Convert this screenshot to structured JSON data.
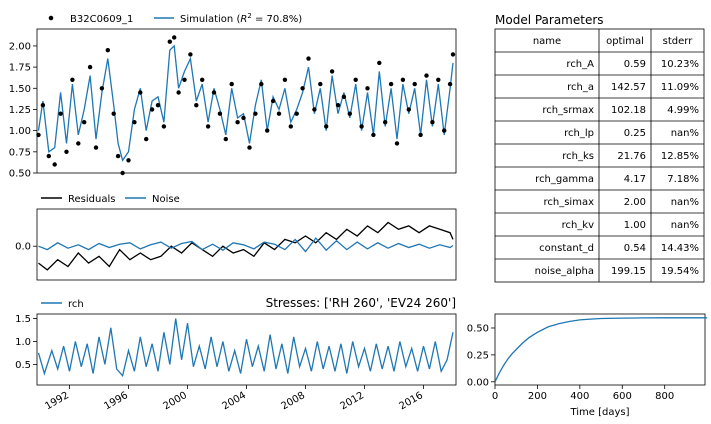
{
  "chart_data": [
    {
      "type": "scatter",
      "subplot": "observations-vs-simulation",
      "series": [
        {
          "name": "B32C0609_1",
          "kind": "points",
          "color": "#000000",
          "x": [
            1989.9,
            1990.2,
            1990.6,
            1991.0,
            1991.4,
            1991.8,
            1992.2,
            1992.6,
            1993.0,
            1993.4,
            1993.8,
            1994.2,
            1994.6,
            1995.0,
            1995.3,
            1995.6,
            1996.0,
            1996.4,
            1996.8,
            1997.2,
            1997.6,
            1998.0,
            1998.4,
            1998.8,
            1999.1,
            1999.4,
            1999.8,
            2000.2,
            2000.6,
            2001.0,
            2001.4,
            2001.8,
            2002.2,
            2002.6,
            2003.0,
            2003.4,
            2003.8,
            2004.2,
            2004.6,
            2005.0,
            2005.4,
            2005.8,
            2006.2,
            2006.6,
            2007.0,
            2007.4,
            2007.8,
            2008.2,
            2008.6,
            2009.0,
            2009.4,
            2009.8,
            2010.2,
            2010.6,
            2011.0,
            2011.4,
            2011.8,
            2012.2,
            2012.6,
            2013.0,
            2013.4,
            2013.8,
            2014.2,
            2014.6,
            2015.0,
            2015.4,
            2015.8,
            2016.2,
            2016.6,
            2017.0,
            2017.4,
            2017.8,
            2018.0
          ],
          "y": [
            0.95,
            1.3,
            0.7,
            0.6,
            1.2,
            0.75,
            1.6,
            0.85,
            1.1,
            1.75,
            0.8,
            1.5,
            1.95,
            1.2,
            0.7,
            0.5,
            0.65,
            1.1,
            1.45,
            0.9,
            1.25,
            1.3,
            1.05,
            2.05,
            2.1,
            1.45,
            1.6,
            1.9,
            1.3,
            1.6,
            1.05,
            1.45,
            1.2,
            0.9,
            1.55,
            1.1,
            1.15,
            0.8,
            1.2,
            1.55,
            1.0,
            1.35,
            1.2,
            1.6,
            1.05,
            1.2,
            1.5,
            1.85,
            1.25,
            1.55,
            1.05,
            1.7,
            1.3,
            1.4,
            1.2,
            1.6,
            1.05,
            1.5,
            0.95,
            1.8,
            1.1,
            1.55,
            0.85,
            1.6,
            1.25,
            1.55,
            0.95,
            1.65,
            1.1,
            1.6,
            1.0,
            1.55,
            1.9
          ]
        },
        {
          "name": "Simulation ($R^2$ = 70.8%)",
          "kind": "line",
          "color": "#1f77b4",
          "x": [
            1989.9,
            1990.2,
            1990.6,
            1991.0,
            1991.4,
            1991.8,
            1992.2,
            1992.6,
            1993.0,
            1993.4,
            1993.8,
            1994.2,
            1994.6,
            1995.0,
            1995.3,
            1995.6,
            1996.0,
            1996.4,
            1996.8,
            1997.2,
            1997.6,
            1998.0,
            1998.4,
            1998.8,
            1999.1,
            1999.4,
            1999.8,
            2000.2,
            2000.6,
            2001.0,
            2001.4,
            2001.8,
            2002.2,
            2002.6,
            2003.0,
            2003.4,
            2003.8,
            2004.2,
            2004.6,
            2005.0,
            2005.4,
            2005.8,
            2006.2,
            2006.6,
            2007.0,
            2007.4,
            2007.8,
            2008.2,
            2008.6,
            2009.0,
            2009.4,
            2009.8,
            2010.2,
            2010.6,
            2011.0,
            2011.4,
            2011.8,
            2012.2,
            2012.6,
            2013.0,
            2013.4,
            2013.8,
            2014.2,
            2014.6,
            2015.0,
            2015.4,
            2015.8,
            2016.2,
            2016.6,
            2017.0,
            2017.4,
            2017.8,
            2018.0
          ],
          "y": [
            1.0,
            1.35,
            0.75,
            0.8,
            1.45,
            0.85,
            1.55,
            0.95,
            1.25,
            1.65,
            0.9,
            1.45,
            1.85,
            1.3,
            0.85,
            0.65,
            0.75,
            1.25,
            1.5,
            1.0,
            1.35,
            1.4,
            1.1,
            1.95,
            2.0,
            1.5,
            1.7,
            1.85,
            1.35,
            1.55,
            1.1,
            1.5,
            1.25,
            0.95,
            1.5,
            1.15,
            1.2,
            0.85,
            1.3,
            1.6,
            1.0,
            1.4,
            1.25,
            1.5,
            1.1,
            1.25,
            1.45,
            1.75,
            1.2,
            1.5,
            1.0,
            1.65,
            1.2,
            1.45,
            1.15,
            1.55,
            1.0,
            1.45,
            0.95,
            1.7,
            1.05,
            1.5,
            0.9,
            1.55,
            1.2,
            1.5,
            0.95,
            1.6,
            1.05,
            1.55,
            0.95,
            1.5,
            1.8
          ]
        }
      ],
      "ylim": [
        0.5,
        2.2
      ],
      "yticks": [
        "0.50",
        "0.75",
        "1.00",
        "1.25",
        "1.50",
        "1.75",
        "2.00"
      ],
      "xlim": [
        1989.8,
        2018.2
      ]
    },
    {
      "type": "line",
      "subplot": "residuals-noise",
      "series": [
        {
          "name": "Residuals",
          "color": "#000000",
          "x": [
            1989.9,
            1990.5,
            1991.2,
            1991.9,
            1992.6,
            1993.3,
            1994.0,
            1994.7,
            1995.4,
            1996.1,
            1996.8,
            1997.5,
            1998.2,
            1998.9,
            1999.6,
            2000.3,
            2001.0,
            2001.7,
            2002.4,
            2003.1,
            2003.8,
            2004.5,
            2005.2,
            2005.9,
            2006.6,
            2007.3,
            2008.0,
            2008.7,
            2009.4,
            2010.1,
            2010.8,
            2011.5,
            2012.2,
            2012.9,
            2013.6,
            2014.3,
            2015.0,
            2015.7,
            2016.4,
            2017.1,
            2017.8,
            2018.0
          ],
          "y": [
            -0.25,
            -0.35,
            -0.2,
            -0.3,
            -0.1,
            -0.25,
            -0.15,
            -0.3,
            -0.05,
            -0.2,
            -0.1,
            -0.2,
            -0.15,
            0.0,
            -0.1,
            0.05,
            -0.05,
            -0.15,
            0.0,
            -0.1,
            -0.05,
            -0.15,
            0.05,
            -0.05,
            0.1,
            0.05,
            0.15,
            0.05,
            0.2,
            0.1,
            0.25,
            0.15,
            0.3,
            0.2,
            0.35,
            0.25,
            0.3,
            0.2,
            0.3,
            0.25,
            0.2,
            0.1
          ]
        },
        {
          "name": "Noise",
          "color": "#1f77b4",
          "x": [
            1989.9,
            1990.5,
            1991.2,
            1991.9,
            1992.6,
            1993.3,
            1994.0,
            1994.7,
            1995.4,
            1996.1,
            1996.8,
            1997.5,
            1998.2,
            1998.9,
            1999.6,
            2000.3,
            2001.0,
            2001.7,
            2002.4,
            2003.1,
            2003.8,
            2004.5,
            2005.2,
            2005.9,
            2006.6,
            2007.3,
            2008.0,
            2008.7,
            2009.4,
            2010.1,
            2010.8,
            2011.5,
            2012.2,
            2012.9,
            2013.6,
            2014.3,
            2015.0,
            2015.7,
            2016.4,
            2017.1,
            2017.8,
            2018.0
          ],
          "y": [
            0.0,
            -0.05,
            0.05,
            -0.03,
            0.02,
            -0.05,
            0.04,
            -0.02,
            0.03,
            0.05,
            -0.04,
            0.02,
            0.06,
            -0.03,
            0.04,
            0.07,
            -0.05,
            0.03,
            -0.06,
            0.05,
            0.02,
            -0.04,
            0.06,
            0.03,
            -0.05,
            0.1,
            -0.08,
            0.12,
            -0.06,
            0.08,
            -0.05,
            0.06,
            -0.04,
            0.05,
            -0.03,
            0.04,
            -0.02,
            0.03,
            -0.03,
            0.02,
            -0.02,
            0.01
          ]
        }
      ],
      "yticks": [
        "0.0"
      ],
      "ylim": [
        -0.5,
        0.55
      ],
      "xlim": [
        1989.8,
        2018.2
      ]
    },
    {
      "type": "line",
      "subplot": "stress-rch",
      "title": "Stresses: ['RH 260', 'EV24 260']",
      "series": [
        {
          "name": "rch",
          "color": "#1f77b4",
          "x": [
            1989.9,
            1990.3,
            1990.8,
            1991.2,
            1991.6,
            1992.0,
            1992.4,
            1992.8,
            1993.2,
            1993.6,
            1994.0,
            1994.4,
            1994.8,
            1995.2,
            1995.6,
            1996.0,
            1996.4,
            1996.8,
            1997.2,
            1997.6,
            1998.0,
            1998.4,
            1998.8,
            1999.2,
            1999.6,
            2000.0,
            2000.4,
            2000.8,
            2001.2,
            2001.6,
            2002.0,
            2002.4,
            2002.8,
            2003.2,
            2003.6,
            2004.0,
            2004.4,
            2004.8,
            2005.2,
            2005.6,
            2006.0,
            2006.4,
            2006.8,
            2007.2,
            2007.6,
            2008.0,
            2008.4,
            2008.8,
            2009.2,
            2009.6,
            2010.0,
            2010.4,
            2010.8,
            2011.2,
            2011.6,
            2012.0,
            2012.4,
            2012.8,
            2013.2,
            2013.6,
            2014.0,
            2014.4,
            2014.8,
            2015.2,
            2015.6,
            2016.0,
            2016.4,
            2016.8,
            2017.2,
            2017.6,
            2018.0
          ],
          "y": [
            0.75,
            0.3,
            0.8,
            0.4,
            0.9,
            0.35,
            1.0,
            0.45,
            0.95,
            0.3,
            1.1,
            0.5,
            1.3,
            0.4,
            0.25,
            0.8,
            0.35,
            1.1,
            0.45,
            0.95,
            0.35,
            1.2,
            0.5,
            1.5,
            0.6,
            1.4,
            0.45,
            0.9,
            0.4,
            1.1,
            0.45,
            1.0,
            0.35,
            0.8,
            0.3,
            1.05,
            0.45,
            0.9,
            0.35,
            1.15,
            0.4,
            0.95,
            0.3,
            1.1,
            0.45,
            0.85,
            0.35,
            1.0,
            0.4,
            0.9,
            0.35,
            0.95,
            0.3,
            1.0,
            0.45,
            0.85,
            0.35,
            0.95,
            0.4,
            0.9,
            0.35,
            1.0,
            0.45,
            0.85,
            0.35,
            0.9,
            0.4,
            1.0,
            0.35,
            0.6,
            1.2
          ]
        }
      ],
      "yticks": [
        "0.5",
        "1.0",
        "1.5"
      ],
      "ylim": [
        0.05,
        1.6
      ],
      "xlim": [
        1989.8,
        2018.2
      ],
      "xticks": [
        "1992",
        "1996",
        "2000",
        "2004",
        "2008",
        "2012",
        "2016"
      ],
      "xtick_values": [
        1992,
        1996,
        2000,
        2004,
        2008,
        2012,
        2016
      ]
    },
    {
      "type": "line",
      "subplot": "step-response",
      "xlabel": "Time [days]",
      "series": [
        {
          "color": "#1f77b4",
          "x": [
            0,
            20,
            40,
            60,
            80,
            100,
            130,
            160,
            200,
            250,
            300,
            350,
            400,
            450,
            500,
            600,
            700,
            800,
            900,
            1000
          ],
          "y": [
            0.0,
            0.08,
            0.15,
            0.21,
            0.26,
            0.3,
            0.36,
            0.41,
            0.46,
            0.51,
            0.54,
            0.56,
            0.575,
            0.583,
            0.588,
            0.592,
            0.594,
            0.595,
            0.595,
            0.595
          ]
        }
      ],
      "xlim": [
        0,
        990
      ],
      "ylim": [
        -0.03,
        0.63
      ],
      "xticks": [
        "0",
        "200",
        "400",
        "600",
        "800"
      ],
      "xtick_values": [
        0,
        200,
        400,
        600,
        800
      ],
      "yticks": [
        "0.00",
        "0.25",
        "0.50"
      ],
      "ytick_values": [
        0.0,
        0.25,
        0.5
      ]
    },
    {
      "type": "table",
      "title": "Model Parameters",
      "columns": [
        "name",
        "optimal",
        "stderr"
      ],
      "rows": [
        [
          "rch_A",
          "0.59",
          "10.23%"
        ],
        [
          "rch_a",
          "142.57",
          "11.09%"
        ],
        [
          "rch_srmax",
          "102.18",
          "4.99%"
        ],
        [
          "rch_lp",
          "0.25",
          "nan%"
        ],
        [
          "rch_ks",
          "21.76",
          "12.85%"
        ],
        [
          "rch_gamma",
          "4.17",
          "7.18%"
        ],
        [
          "rch_simax",
          "2.00",
          "nan%"
        ],
        [
          "rch_kv",
          "1.00",
          "nan%"
        ],
        [
          "constant_d",
          "0.54",
          "14.43%"
        ],
        [
          "noise_alpha",
          "199.15",
          "19.54%"
        ]
      ]
    }
  ]
}
